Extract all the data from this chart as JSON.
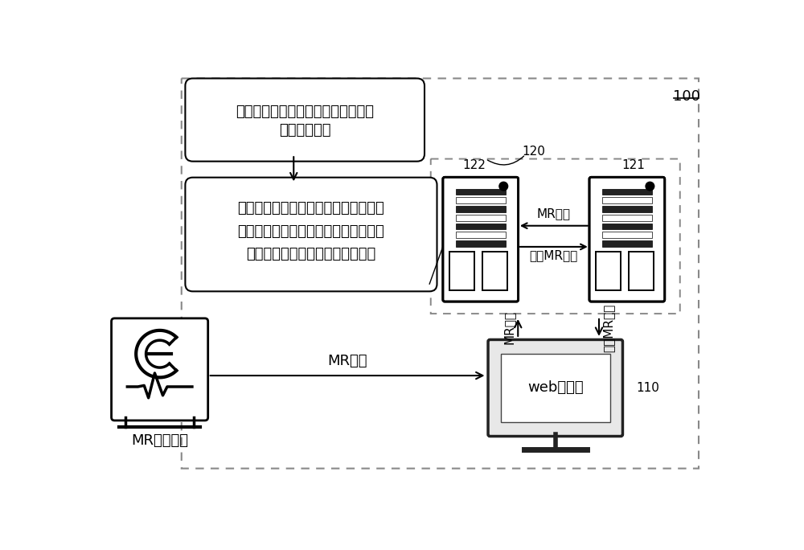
{
  "bg_color": "#ffffff",
  "label_100": "100",
  "label_120": "120",
  "label_121": "121",
  "label_122": "122",
  "label_110": "110",
  "flow_box1_text_line1": "基于质量评估模型确定该医学图像的",
  "flow_box1_text_line2": "第一质量等级",
  "flow_box2_text_line1": "在该第一质量等级与预设质量等级相匹",
  "flow_box2_text_line2": "配时，基于图像重建模型对该医学图像",
  "flow_box2_text_line3": "进行重建处理，得到重建医学图像",
  "server_mr_text": "MR图像",
  "server_rebuild_text": "重建MR图像",
  "vertical_mr_text": "MR图像",
  "vertical_rebuild_text": "重建MR图像",
  "horizontal_mr_text": "MR图像",
  "web_text": "web客户端",
  "device_label": "MR成像设备"
}
